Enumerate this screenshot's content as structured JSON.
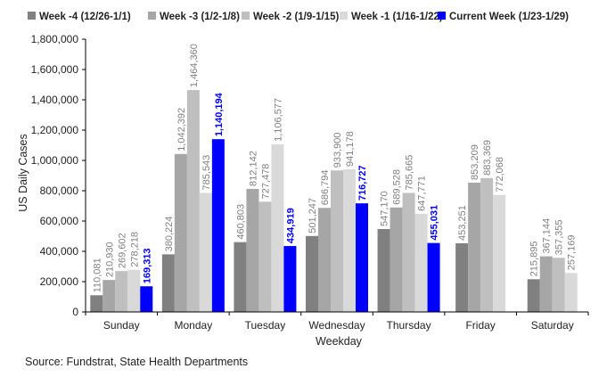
{
  "chart_data": {
    "type": "bar",
    "xlabel": "Weekday",
    "ylabel": "US Daily Cases",
    "ylim": [
      0,
      1800000
    ],
    "yticks": [
      "0",
      "200,000",
      "400,000",
      "600,000",
      "800,000",
      "1,000,000",
      "1,200,000",
      "1,400,000",
      "1,600,000",
      "1,800,000"
    ],
    "grid": false,
    "legend_position": "top",
    "categories": [
      "Sunday",
      "Monday",
      "Tuesday",
      "Wednesday",
      "Thursday",
      "Friday",
      "Saturday"
    ],
    "series": [
      {
        "name": "Week -4 (12/26-1/1)",
        "color": "#808080",
        "values": [
          110081,
          380224,
          460803,
          501247,
          547170,
          453251,
          215895
        ],
        "labels": [
          "110,081",
          "380,224",
          "460,803",
          "501,247",
          "547,170",
          "453,251",
          "215,895"
        ]
      },
      {
        "name": "Week -3 (1/2-1/8)",
        "color": "#a6a6a6",
        "values": [
          210930,
          1042392,
          812142,
          686794,
          689528,
          853209,
          367144
        ],
        "labels": [
          "210,930",
          "1,042,392",
          "812,142",
          "686,794",
          "689,528",
          "853,209",
          "367,144"
        ]
      },
      {
        "name": "Week -2 (1/9-1/15)",
        "color": "#bfbfbf",
        "values": [
          269602,
          1464360,
          727478,
          933900,
          785665,
          883369,
          357355
        ],
        "labels": [
          "269,602",
          "1,464,360",
          "727,478",
          "933,900",
          "785,665",
          "883,369",
          "357,355"
        ]
      },
      {
        "name": "Week -1 (1/16-1/22)",
        "color": "#d9d9d9",
        "values": [
          278218,
          785543,
          1106577,
          941178,
          647771,
          772068,
          257169
        ],
        "labels": [
          "278,218",
          "785,543",
          "1,106,577",
          "941,178",
          "647,771",
          "772,068",
          "257,169"
        ]
      },
      {
        "name": "Current Week (1/23-1/29)",
        "color": "#0000ff",
        "values": [
          169313,
          1140194,
          434919,
          716727,
          455031,
          null,
          null
        ],
        "labels": [
          "169,313",
          "1,140,194",
          "434,919",
          "716,727",
          "455,031",
          "",
          ""
        ]
      }
    ]
  },
  "source": "Source: Fundstrat, State Health Departments"
}
